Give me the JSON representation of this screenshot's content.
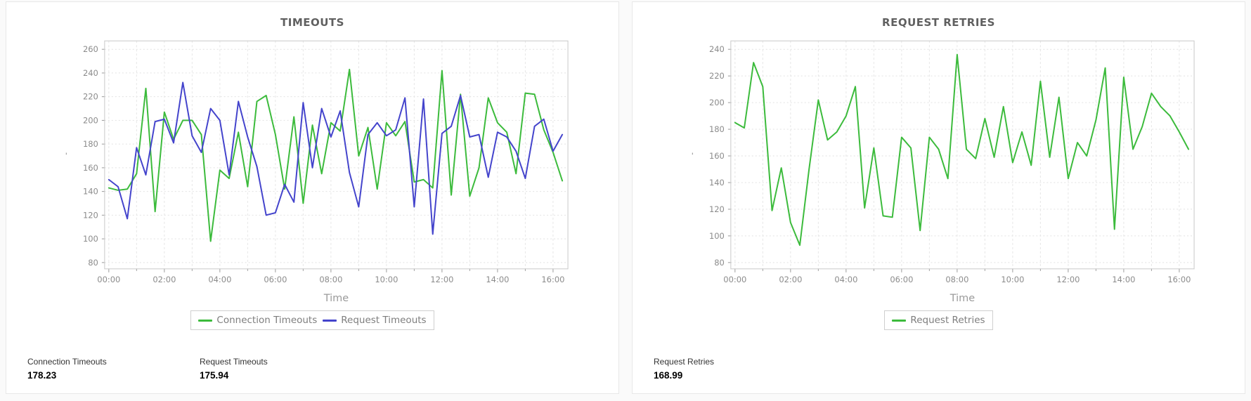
{
  "panels": [
    {
      "stats": [
        {
          "label": "Connection Timeouts",
          "value": "178.23"
        },
        {
          "label": "Request Timeouts",
          "value": "175.94"
        }
      ]
    },
    {
      "stats": [
        {
          "label": "Request Retries",
          "value": "168.99"
        }
      ]
    }
  ],
  "chart_data": [
    {
      "type": "line",
      "title": "TIMEOUTS",
      "xlabel": "Time",
      "ylabel": "'",
      "xticks": [
        "00:00",
        "02:00",
        "04:00",
        "06:00",
        "08:00",
        "10:00",
        "12:00",
        "14:00",
        "16:00"
      ],
      "yticks": [
        80,
        100,
        120,
        140,
        160,
        180,
        200,
        220,
        240,
        260
      ],
      "ylim": [
        80,
        260
      ],
      "x_interval_minutes": 20,
      "grid": true,
      "legend_position": "bottom",
      "series": [
        {
          "name": "Connection Timeouts",
          "color": "#3cbb3c",
          "values": [
            143,
            141,
            142,
            155,
            227,
            123,
            207,
            184,
            200,
            200,
            188,
            98,
            158,
            151,
            190,
            144,
            216,
            221,
            188,
            142,
            203,
            130,
            196,
            155,
            198,
            191,
            243,
            170,
            194,
            142,
            198,
            187,
            199,
            148,
            150,
            143,
            242,
            137,
            222,
            136,
            160,
            219,
            198,
            190,
            155,
            223,
            222,
            192,
            173,
            149
          ]
        },
        {
          "name": "Request Timeouts",
          "color": "#4444cc",
          "values": [
            150,
            144,
            117,
            177,
            154,
            199,
            201,
            181,
            232,
            187,
            173,
            210,
            200,
            154,
            216,
            186,
            161,
            120,
            122,
            146,
            131,
            215,
            160,
            210,
            186,
            208,
            156,
            127,
            188,
            198,
            187,
            192,
            219,
            127,
            218,
            104,
            189,
            195,
            221,
            186,
            188,
            152,
            190,
            186,
            174,
            151,
            195,
            201,
            174,
            188
          ]
        }
      ]
    },
    {
      "type": "line",
      "title": "REQUEST RETRIES",
      "xlabel": "Time",
      "ylabel": "'",
      "xticks": [
        "00:00",
        "02:00",
        "04:00",
        "06:00",
        "08:00",
        "10:00",
        "12:00",
        "14:00",
        "16:00"
      ],
      "yticks": [
        80,
        100,
        120,
        140,
        160,
        180,
        200,
        220,
        240
      ],
      "ylim": [
        80,
        240
      ],
      "x_interval_minutes": 20,
      "grid": true,
      "legend_position": "bottom",
      "series": [
        {
          "name": "Request Retries",
          "color": "#3cbb3c",
          "values": [
            185,
            181,
            230,
            212,
            119,
            151,
            110,
            93,
            150,
            202,
            172,
            178,
            190,
            212,
            121,
            166,
            115,
            114,
            174,
            166,
            104,
            174,
            165,
            143,
            236,
            165,
            158,
            188,
            159,
            197,
            155,
            178,
            153,
            216,
            159,
            204,
            143,
            170,
            160,
            187,
            226,
            105,
            219,
            165,
            182,
            207,
            197,
            190,
            178,
            165
          ]
        }
      ]
    }
  ]
}
